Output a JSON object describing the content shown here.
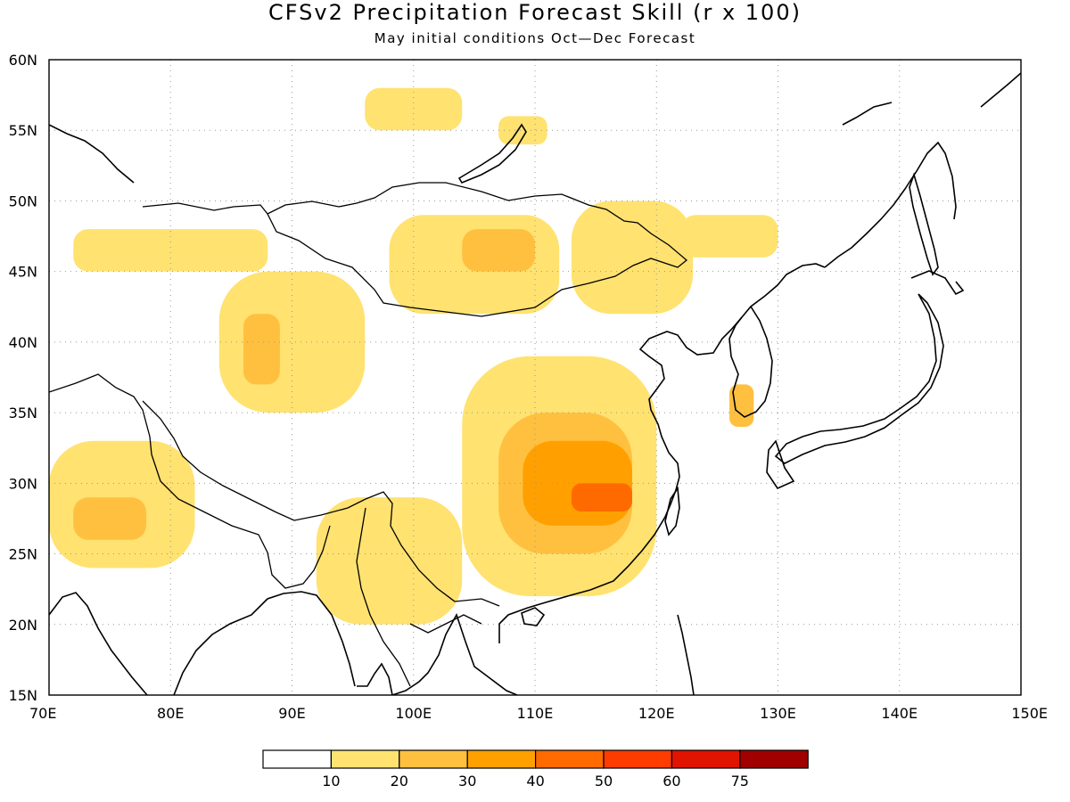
{
  "title": "CFSv2 Precipitation Forecast Skill (r x 100)",
  "subtitle": "May initial conditions  Oct—Dec Forecast",
  "map": {
    "lon_range": [
      70,
      150
    ],
    "lat_range": [
      15,
      60
    ],
    "lon_ticks": [
      "70E",
      "80E",
      "90E",
      "100E",
      "110E",
      "120E",
      "130E",
      "140E",
      "150E"
    ],
    "lat_ticks": [
      "60N",
      "55N",
      "50N",
      "45N",
      "40N",
      "35N",
      "30N",
      "25N",
      "20N",
      "15N"
    ],
    "grid": "dotted"
  },
  "legend": {
    "colors": [
      "#ffffff",
      "#ffe270",
      "#ffc040",
      "#ffa000",
      "#ff6a00",
      "#ff3c00",
      "#e01400",
      "#a00000"
    ],
    "labels": [
      "10",
      "20",
      "30",
      "40",
      "50",
      "60",
      "75"
    ]
  },
  "skill_regions": [
    {
      "level": 1,
      "lon": [
        72,
        88
      ],
      "lat": [
        45,
        48
      ]
    },
    {
      "level": 1,
      "lon": [
        84,
        96
      ],
      "lat": [
        35,
        45
      ]
    },
    {
      "level": 2,
      "lon": [
        86,
        89
      ],
      "lat": [
        37,
        42
      ]
    },
    {
      "level": 1,
      "lon": [
        96,
        104
      ],
      "lat": [
        55,
        58
      ]
    },
    {
      "level": 1,
      "lon": [
        107,
        111
      ],
      "lat": [
        54,
        56
      ]
    },
    {
      "level": 1,
      "lon": [
        98,
        112
      ],
      "lat": [
        42,
        49
      ]
    },
    {
      "level": 2,
      "lon": [
        104,
        110
      ],
      "lat": [
        45,
        48
      ]
    },
    {
      "level": 1,
      "lon": [
        113,
        123
      ],
      "lat": [
        42,
        50
      ]
    },
    {
      "level": 1,
      "lon": [
        122,
        130
      ],
      "lat": [
        46,
        49
      ]
    },
    {
      "level": 1,
      "lon": [
        70,
        82
      ],
      "lat": [
        24,
        33
      ]
    },
    {
      "level": 2,
      "lon": [
        72,
        78
      ],
      "lat": [
        26,
        29
      ]
    },
    {
      "level": 1,
      "lon": [
        92,
        104
      ],
      "lat": [
        20,
        29
      ]
    },
    {
      "level": 1,
      "lon": [
        104,
        120
      ],
      "lat": [
        22,
        39
      ]
    },
    {
      "level": 2,
      "lon": [
        107,
        118
      ],
      "lat": [
        25,
        35
      ]
    },
    {
      "level": 3,
      "lon": [
        109,
        118
      ],
      "lat": [
        27,
        33
      ]
    },
    {
      "level": 4,
      "lon": [
        113,
        118
      ],
      "lat": [
        28,
        30
      ]
    },
    {
      "level": 2,
      "lon": [
        126,
        128
      ],
      "lat": [
        34,
        37
      ]
    }
  ]
}
